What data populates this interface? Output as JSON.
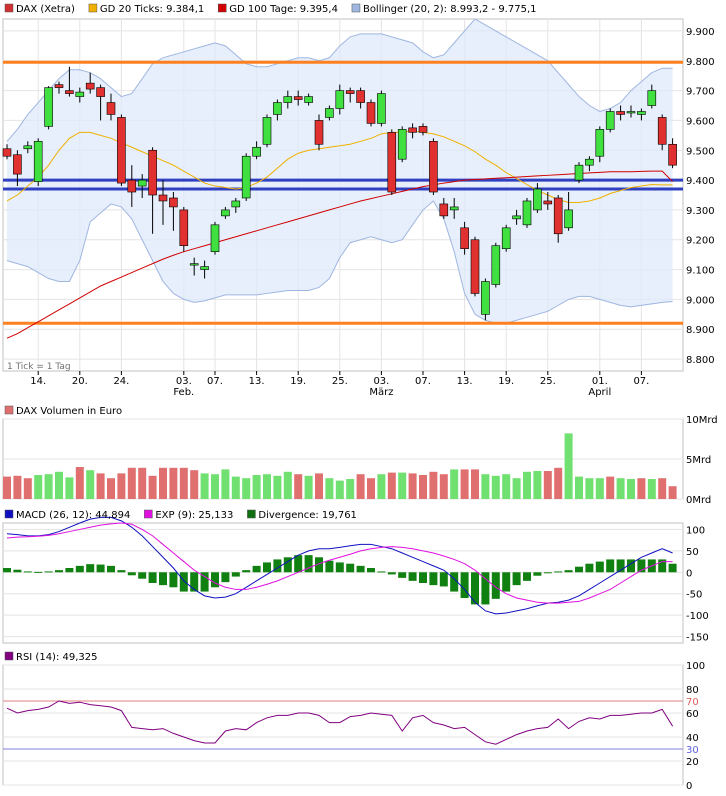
{
  "chart_data": [
    {
      "panel": "price",
      "type": "candlestick",
      "legend": [
        {
          "label": "DAX (Xetra)",
          "color": "#d03030"
        },
        {
          "label": "GD 20 Ticks: 9.384,1",
          "color": "#f0b000"
        },
        {
          "label": "GD 100 Tage: 9.395,4",
          "color": "#d00000"
        },
        {
          "label": "Bollinger (20, 2): 8.993,2 - 9.775,1",
          "color": "#9fb6e0"
        }
      ],
      "note": "1 Tick = 1 Tag",
      "y_ticks": [
        "9.900",
        "9.800",
        "9.700",
        "9.600",
        "9.500",
        "9.400",
        "9.300",
        "9.200",
        "9.100",
        "9.000",
        "8.900",
        "8.800"
      ],
      "ylim": [
        8760,
        9940
      ],
      "x_ticks": [
        {
          "i": 3,
          "label": "14."
        },
        {
          "i": 7,
          "label": "20."
        },
        {
          "i": 11,
          "label": "24."
        },
        {
          "i": 17,
          "label": "03.",
          "sub": "Feb."
        },
        {
          "i": 20,
          "label": "07."
        },
        {
          "i": 24,
          "label": "13."
        },
        {
          "i": 28,
          "label": "19."
        },
        {
          "i": 32,
          "label": "25."
        },
        {
          "i": 36,
          "label": "03.",
          "sub": "März"
        },
        {
          "i": 40,
          "label": "07."
        },
        {
          "i": 44,
          "label": "13."
        },
        {
          "i": 48,
          "label": "19."
        },
        {
          "i": 52,
          "label": "25."
        },
        {
          "i": 57,
          "label": "01.",
          "sub": "April"
        },
        {
          "i": 61,
          "label": "07."
        }
      ],
      "hlines": [
        {
          "value": 9795,
          "color": "#ff8020"
        },
        {
          "value": 8920,
          "color": "#ff8020"
        },
        {
          "value": 9400,
          "color": "#3040c0"
        },
        {
          "value": 9370,
          "color": "#3040c0"
        }
      ],
      "candles": [
        [
          9505,
          9480,
          9520,
          9470
        ],
        [
          9485,
          9420,
          9500,
          9380
        ],
        [
          9505,
          9515,
          9530,
          9490
        ],
        [
          9395,
          9530,
          9540,
          9380
        ],
        [
          9580,
          9710,
          9715,
          9570
        ],
        [
          9720,
          9710,
          9730,
          9690
        ],
        [
          9700,
          9690,
          9780,
          9680
        ],
        [
          9680,
          9695,
          9710,
          9660
        ],
        [
          9725,
          9705,
          9760,
          9690
        ],
        [
          9710,
          9680,
          9720,
          9600
        ],
        [
          9660,
          9620,
          9690,
          9600
        ],
        [
          9610,
          9390,
          9620,
          9380
        ],
        [
          9400,
          9360,
          9450,
          9310
        ],
        [
          9380,
          9400,
          9420,
          9340
        ],
        [
          9500,
          9350,
          9510,
          9220
        ],
        [
          9350,
          9330,
          9400,
          9250
        ],
        [
          9340,
          9310,
          9360,
          9230
        ],
        [
          9300,
          9180,
          9310,
          9160
        ],
        [
          9120,
          9120,
          9140,
          9080
        ],
        [
          9100,
          9110,
          9130,
          9070
        ],
        [
          9160,
          9250,
          9260,
          9150
        ],
        [
          9280,
          9300,
          9310,
          9270
        ],
        [
          9310,
          9330,
          9340,
          9290
        ],
        [
          9340,
          9480,
          9490,
          9330
        ],
        [
          9480,
          9510,
          9530,
          9470
        ],
        [
          9520,
          9610,
          9620,
          9510
        ],
        [
          9620,
          9660,
          9670,
          9600
        ],
        [
          9660,
          9680,
          9700,
          9640
        ],
        [
          9680,
          9670,
          9700,
          9650
        ],
        [
          9660,
          9680,
          9690,
          9650
        ],
        [
          9600,
          9520,
          9620,
          9500
        ],
        [
          9610,
          9640,
          9650,
          9600
        ],
        [
          9640,
          9700,
          9720,
          9620
        ],
        [
          9700,
          9690,
          9710,
          9660
        ],
        [
          9700,
          9660,
          9710,
          9640
        ],
        [
          9660,
          9590,
          9670,
          9580
        ],
        [
          9590,
          9690,
          9700,
          9580
        ],
        [
          9560,
          9360,
          9570,
          9350
        ],
        [
          9470,
          9570,
          9580,
          9460
        ],
        [
          9575,
          9560,
          9590,
          9540
        ],
        [
          9580,
          9560,
          9590,
          9550
        ],
        [
          9530,
          9360,
          9540,
          9350
        ],
        [
          9320,
          9280,
          9340,
          9270
        ],
        [
          9300,
          9310,
          9340,
          9270
        ],
        [
          9240,
          9170,
          9260,
          9150
        ],
        [
          9200,
          9020,
          9210,
          9010
        ],
        [
          8950,
          9060,
          9070,
          8930
        ],
        [
          9050,
          9180,
          9190,
          9040
        ],
        [
          9170,
          9240,
          9250,
          9160
        ],
        [
          9270,
          9280,
          9300,
          9250
        ],
        [
          9250,
          9330,
          9340,
          9240
        ],
        [
          9300,
          9370,
          9390,
          9290
        ],
        [
          9330,
          9320,
          9360,
          9300
        ],
        [
          9340,
          9220,
          9350,
          9190
        ],
        [
          9240,
          9300,
          9360,
          9230
        ],
        [
          9400,
          9450,
          9460,
          9390
        ],
        [
          9450,
          9470,
          9480,
          9430
        ],
        [
          9480,
          9570,
          9580,
          9460
        ],
        [
          9570,
          9630,
          9640,
          9560
        ],
        [
          9630,
          9620,
          9650,
          9600
        ],
        [
          9630,
          9630,
          9650,
          9610
        ],
        [
          9620,
          9630,
          9640,
          9600
        ],
        [
          9650,
          9700,
          9720,
          9640
        ],
        [
          9610,
          9520,
          9620,
          9500
        ],
        [
          9520,
          9450,
          9540,
          9440
        ]
      ],
      "gd20": [
        9330,
        9350,
        9380,
        9410,
        9450,
        9500,
        9540,
        9560,
        9560,
        9550,
        9540,
        9525,
        9510,
        9495,
        9480,
        9465,
        9450,
        9430,
        9410,
        9390,
        9380,
        9375,
        9370,
        9375,
        9390,
        9410,
        9440,
        9470,
        9490,
        9500,
        9505,
        9510,
        9515,
        9520,
        9530,
        9540,
        9555,
        9560,
        9560,
        9565,
        9560,
        9555,
        9545,
        9530,
        9515,
        9495,
        9470,
        9450,
        9425,
        9405,
        9385,
        9365,
        9350,
        9335,
        9325,
        9325,
        9330,
        9340,
        9355,
        9365,
        9375,
        9380,
        9385,
        9384,
        9384
      ],
      "gd100": [
        8870,
        8885,
        8905,
        8925,
        8945,
        8965,
        8985,
        9005,
        9025,
        9045,
        9060,
        9075,
        9090,
        9105,
        9120,
        9135,
        9148,
        9160,
        9170,
        9180,
        9190,
        9200,
        9210,
        9220,
        9230,
        9240,
        9250,
        9260,
        9270,
        9280,
        9290,
        9300,
        9310,
        9320,
        9330,
        9338,
        9346,
        9354,
        9362,
        9370,
        9378,
        9384,
        9390,
        9395,
        9400,
        9402,
        9404,
        9406,
        9408,
        9410,
        9412,
        9414,
        9416,
        9418,
        9420,
        9422,
        9424,
        9426,
        9428,
        9428,
        9428,
        9429,
        9430,
        9430,
        9395
      ],
      "boll_upper": [
        9530,
        9570,
        9620,
        9660,
        9700,
        9740,
        9770,
        9770,
        9760,
        9740,
        9710,
        9680,
        9690,
        9740,
        9790,
        9810,
        9820,
        9830,
        9840,
        9850,
        9860,
        9850,
        9820,
        9790,
        9780,
        9780,
        9790,
        9800,
        9810,
        9810,
        9800,
        9810,
        9850,
        9880,
        9890,
        9890,
        9890,
        9880,
        9870,
        9860,
        9830,
        9810,
        9820,
        9860,
        9900,
        9940,
        9920,
        9900,
        9880,
        9860,
        9840,
        9820,
        9800,
        9760,
        9720,
        9680,
        9650,
        9630,
        9640,
        9660,
        9700,
        9730,
        9760,
        9775,
        9775
      ],
      "boll_lower": [
        9130,
        9120,
        9110,
        9090,
        9070,
        9060,
        9060,
        9130,
        9260,
        9290,
        9320,
        9310,
        9270,
        9200,
        9130,
        9060,
        9020,
        9000,
        8990,
        8995,
        9005,
        9015,
        9015,
        9015,
        9015,
        9020,
        9025,
        9030,
        9030,
        9030,
        9040,
        9070,
        9140,
        9190,
        9200,
        9210,
        9200,
        9190,
        9200,
        9250,
        9300,
        9330,
        9270,
        9160,
        9020,
        8950,
        8930,
        8920,
        8920,
        8930,
        8940,
        8950,
        8960,
        8980,
        9000,
        9010,
        9010,
        9000,
        8990,
        8980,
        8975,
        8980,
        8985,
        8990,
        8993
      ]
    },
    {
      "panel": "volume",
      "type": "bar",
      "legend": [
        {
          "label": "DAX Volumen in Euro",
          "color": "#e07070"
        }
      ],
      "y_ticks": [
        "10Mrd",
        "5Mrd",
        "0Mrd"
      ],
      "ylim": [
        0,
        10
      ],
      "values": [
        2.8,
        2.9,
        2.6,
        3.0,
        3.1,
        3.4,
        2.7,
        4.0,
        3.6,
        3.2,
        2.6,
        3.2,
        3.9,
        3.9,
        2.9,
        3.9,
        3.9,
        3.9,
        3.6,
        3.2,
        3.1,
        3.7,
        2.8,
        2.6,
        3.0,
        3.1,
        2.9,
        3.4,
        3.1,
        2.9,
        3.2,
        2.6,
        2.3,
        2.5,
        3.1,
        2.6,
        3.1,
        3.3,
        3.3,
        3.2,
        3.0,
        3.4,
        3.1,
        3.7,
        3.7,
        3.7,
        3.1,
        2.9,
        3.1,
        2.6,
        3.4,
        3.5,
        3.5,
        3.9,
        8.2,
        2.8,
        2.6,
        2.6,
        2.8,
        2.6,
        2.5,
        2.6,
        2.5,
        2.6,
        1.6
      ],
      "up": [
        false,
        false,
        false,
        true,
        true,
        true,
        true,
        false,
        true,
        false,
        false,
        false,
        false,
        false,
        false,
        false,
        false,
        false,
        false,
        true,
        true,
        true,
        true,
        true,
        true,
        true,
        true,
        true,
        false,
        true,
        false,
        true,
        true,
        true,
        false,
        false,
        true,
        false,
        true,
        false,
        false,
        false,
        false,
        true,
        false,
        false,
        true,
        true,
        true,
        true,
        true,
        true,
        false,
        false,
        true,
        true,
        true,
        true,
        false,
        true,
        true,
        false,
        true,
        false,
        false
      ]
    },
    {
      "panel": "macd",
      "type": "line",
      "legend": [
        {
          "label": "MACD (26, 12): 44,894",
          "color": "#1010c0"
        },
        {
          "label": "EXP (9): 25,133",
          "color": "#e010e0"
        },
        {
          "label": "Divergence: 19,761",
          "color": "#107010"
        }
      ],
      "y_ticks": [
        "100",
        "50",
        "0",
        "-50",
        "-100",
        "-150"
      ],
      "ylim": [
        -165,
        115
      ],
      "macd": [
        90,
        88,
        85,
        85,
        88,
        95,
        105,
        115,
        124,
        128,
        128,
        120,
        105,
        85,
        60,
        35,
        10,
        -20,
        -40,
        -55,
        -60,
        -58,
        -50,
        -35,
        -20,
        -5,
        10,
        25,
        40,
        50,
        55,
        55,
        58,
        62,
        65,
        65,
        60,
        55,
        45,
        35,
        25,
        15,
        5,
        -15,
        -40,
        -70,
        -90,
        -97,
        -95,
        -90,
        -85,
        -78,
        -72,
        -70,
        -65,
        -55,
        -40,
        -25,
        -10,
        5,
        20,
        35,
        45,
        55,
        45
      ],
      "exp": [
        80,
        82,
        83,
        84,
        86,
        90,
        95,
        100,
        105,
        110,
        113,
        115,
        112,
        100,
        85,
        65,
        45,
        25,
        5,
        -10,
        -25,
        -35,
        -40,
        -40,
        -35,
        -28,
        -20,
        -10,
        0,
        10,
        20,
        28,
        35,
        42,
        50,
        55,
        58,
        60,
        58,
        55,
        50,
        45,
        38,
        30,
        20,
        5,
        -15,
        -35,
        -50,
        -60,
        -65,
        -70,
        -72,
        -72,
        -70,
        -68,
        -60,
        -50,
        -40,
        -25,
        -10,
        5,
        15,
        25,
        25
      ],
      "divergence": [
        10,
        6,
        2,
        1,
        2,
        5,
        10,
        15,
        19,
        18,
        15,
        5,
        -7,
        -15,
        -25,
        -30,
        -35,
        -45,
        -45,
        -45,
        -35,
        -23,
        -10,
        5,
        15,
        23,
        30,
        35,
        40,
        40,
        35,
        27,
        23,
        20,
        15,
        10,
        2,
        -5,
        -13,
        -20,
        -25,
        -30,
        -33,
        -45,
        -60,
        -75,
        -75,
        -62,
        -45,
        -30,
        -20,
        -8,
        0,
        2,
        5,
        13,
        20,
        25,
        30,
        30,
        30,
        30,
        30,
        30,
        20
      ]
    },
    {
      "panel": "rsi",
      "type": "line",
      "legend": [
        {
          "label": "RSI (14): 49,325",
          "color": "#800080"
        }
      ],
      "y_ticks": [
        "100",
        "80",
        "70",
        "60",
        "40",
        "30",
        "20",
        "0"
      ],
      "ylim": [
        0,
        100
      ],
      "levels": [
        70,
        30
      ],
      "values": [
        64,
        60,
        62,
        63,
        65,
        70,
        68,
        69,
        67,
        66,
        65,
        62,
        48,
        47,
        46,
        47,
        43,
        40,
        37,
        35,
        35,
        45,
        47,
        46,
        52,
        56,
        58,
        58,
        60,
        60,
        58,
        52,
        52,
        57,
        58,
        60,
        59,
        58,
        45,
        56,
        58,
        52,
        50,
        47,
        48,
        42,
        36,
        34,
        38,
        42,
        45,
        47,
        48,
        55,
        47,
        53,
        56,
        55,
        58,
        58,
        59,
        60,
        60,
        63,
        49
      ]
    }
  ]
}
